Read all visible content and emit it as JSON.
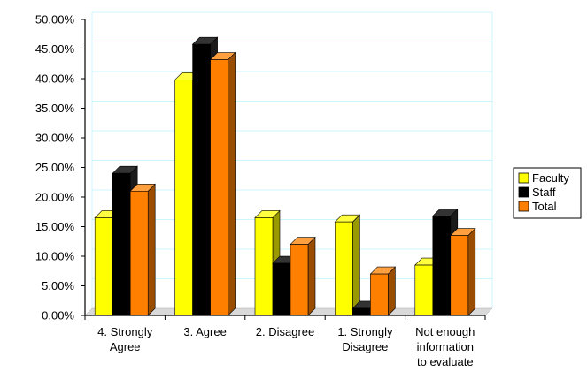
{
  "chart_data": {
    "type": "bar",
    "title": "",
    "xlabel": "",
    "ylabel": "",
    "ylim": [
      0,
      50
    ],
    "y_tick_labels": [
      "0.00%",
      "5.00%",
      "10.00%",
      "15.00%",
      "20.00%",
      "25.00%",
      "30.00%",
      "35.00%",
      "40.00%",
      "45.00%",
      "50.00%"
    ],
    "categories": [
      [
        "4. Strongly",
        "Agree"
      ],
      [
        "3. Agree"
      ],
      [
        "2. Disagree"
      ],
      [
        "1. Strongly",
        "Disagree"
      ],
      [
        "Not enough",
        "information",
        "to evaluate"
      ]
    ],
    "series": [
      {
        "name": "Faculty",
        "color": "#FFFF00",
        "values": [
          16.5,
          39.8,
          16.5,
          15.8,
          8.5
        ]
      },
      {
        "name": "Staff",
        "color": "#000000",
        "values": [
          24.0,
          45.8,
          8.8,
          1.2,
          16.8
        ]
      },
      {
        "name": "Total",
        "color": "#FF8000",
        "values": [
          21.0,
          43.2,
          12.0,
          7.0,
          13.5
        ]
      }
    ],
    "grid": true,
    "legend_position": "right",
    "style": "3d-column"
  }
}
